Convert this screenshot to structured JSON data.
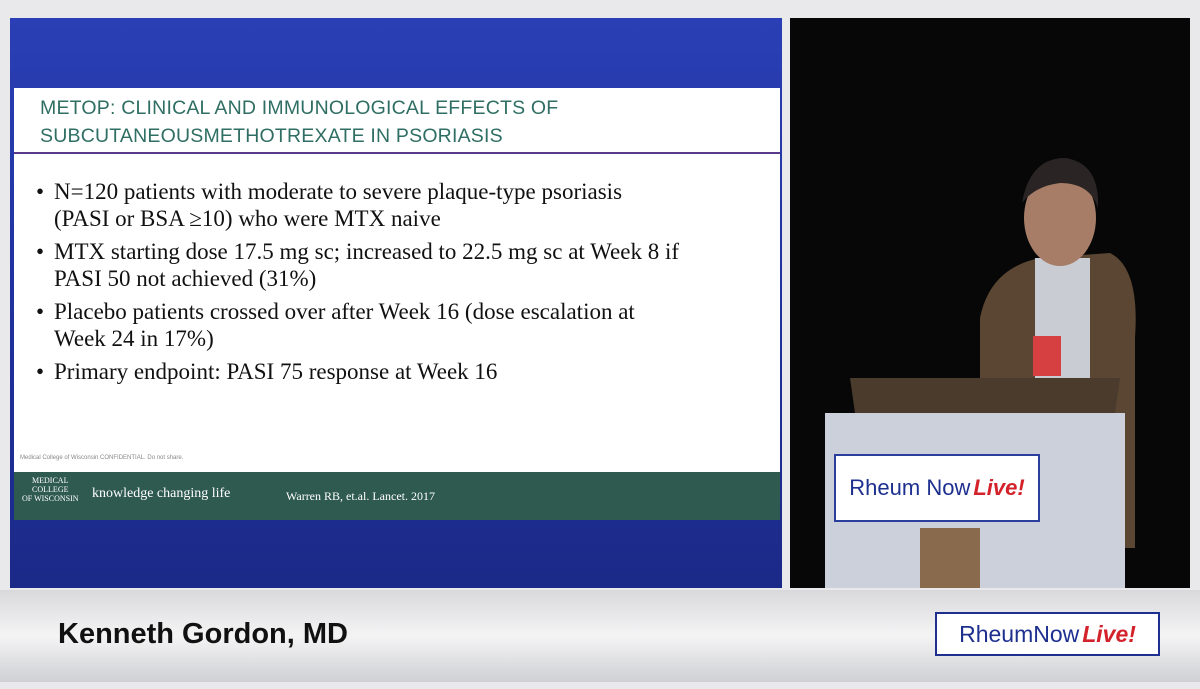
{
  "slide": {
    "title_lines": [
      "METOP: CLINICAL AND IMMUNOLOGICAL EFFECTS OF",
      "SUBCUTANEOUSMETHOTREXATE IN PSORIASIS"
    ],
    "bullets": [
      [
        "N=120 patients with moderate to severe plaque-type psoriasis",
        "(PASI or BSA ≥10) who were MTX naive"
      ],
      [
        "MTX starting dose 17.5 mg sc; increased to 22.5 mg sc at Week 8 if",
        "PASI 50 not achieved (31%)"
      ],
      [
        "Placebo patients crossed over after Week 16 (dose escalation at",
        "Week 24 in 17%)"
      ],
      [
        "Primary endpoint: PASI 75 response at Week 16"
      ]
    ],
    "confidential": "Medical College of Wisconsin CONFIDENTIAL. Do not share.",
    "institution": [
      "MEDICAL",
      "COLLEGE",
      "OF WISCONSIN"
    ],
    "tagline": "knowledge changing life",
    "citation": "Warren RB, et.al. Lancet. 2017"
  },
  "stage_sign": {
    "brand": "Rheum Now",
    "live": "Live!"
  },
  "lower_third": {
    "speaker": "Kenneth Gordon, MD",
    "logo": {
      "brand": "RheumNow",
      "live": "Live!"
    }
  }
}
